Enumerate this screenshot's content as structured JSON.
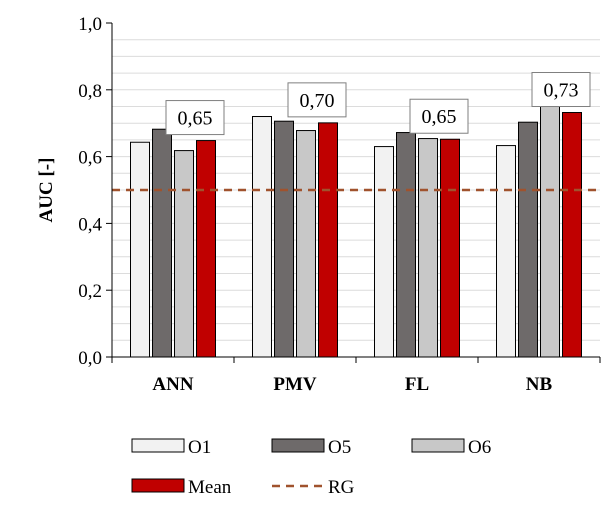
{
  "chart_data": {
    "type": "bar",
    "ylabel": "AUC [-]",
    "xlabel": "",
    "ylim": [
      0,
      1
    ],
    "yticks": [
      "0,0",
      "0,2",
      "0,4",
      "0,6",
      "0,8",
      "1,0"
    ],
    "categories": [
      "ANN",
      "PMV",
      "FL",
      "NB"
    ],
    "series": [
      {
        "name": "O1",
        "values": [
          0.643,
          0.72,
          0.63,
          0.633
        ],
        "color": "#f2f2f2"
      },
      {
        "name": "O5",
        "values": [
          0.682,
          0.706,
          0.672,
          0.703
        ],
        "color": "#6e6a6a"
      },
      {
        "name": "O6",
        "values": [
          0.618,
          0.678,
          0.654,
          0.76
        ],
        "color": "#c8c8c8"
      },
      {
        "name": "Mean",
        "values": [
          0.648,
          0.701,
          0.652,
          0.732
        ],
        "color": "#c00000"
      }
    ],
    "mean_labels": [
      "0,65",
      "0,70",
      "0,65",
      "0,73"
    ],
    "reference_line": {
      "name": "RG",
      "value": 0.5,
      "color": "#a0522d",
      "style": "dashed"
    },
    "grid": true,
    "legend_position": "bottom"
  }
}
